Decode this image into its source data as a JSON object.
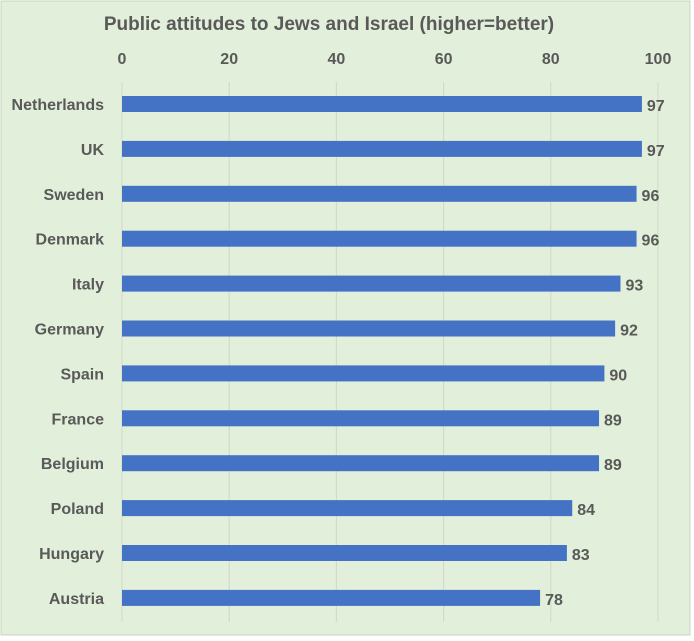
{
  "chart_data": {
    "type": "bar",
    "orientation": "horizontal",
    "title": "Public attitudes to Jews and Israel (higher=better)",
    "xlabel": "",
    "ylabel": "",
    "categories": [
      "Netherlands",
      "UK",
      "Sweden",
      "Denmark",
      "Italy",
      "Germany",
      "Spain",
      "France",
      "Belgium",
      "Poland",
      "Hungary",
      "Austria"
    ],
    "values": [
      97,
      97,
      96,
      96,
      93,
      92,
      90,
      89,
      89,
      84,
      83,
      78
    ],
    "xlim": [
      0,
      100
    ],
    "xticks": [
      "0",
      "20",
      "40",
      "60",
      "80",
      "100"
    ],
    "x_axis_position": "top",
    "grid": true,
    "data_labels": true,
    "colors": {
      "bar": "#4472c4",
      "background": "#e2efda",
      "grid": "#d0d8c8",
      "text": "#595959"
    }
  }
}
